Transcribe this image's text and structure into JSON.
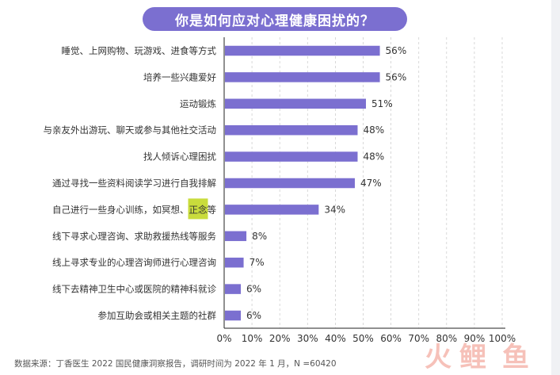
{
  "title": "你是如何应对心理健康困扰的？",
  "source": "数据来源：丁香医生 2022 国民健康洞察报告，调研时间为 2022 年 1 月，N =60420",
  "watermark": {
    "char1": "火",
    "char2": "鲤",
    "char3": "鱼"
  },
  "colors": {
    "bar": "#7b6fd0",
    "title_bg": "#7b6fd0",
    "highlight": "#c9dc3c",
    "watermark": "#e8503a"
  },
  "chart_data": {
    "type": "bar",
    "orientation": "horizontal",
    "title": "你是如何应对心理健康困扰的？",
    "categories": [
      "睡觉、上网购物、玩游戏、进食等方式",
      "培养一些兴趣爱好",
      "运动锻炼",
      "与亲友外出游玩、聊天或参与其他社交活动",
      "找人倾诉心理困扰",
      "通过寻找一些资料阅读学习进行自我排解",
      "自己进行一些身心训练，如冥想、正念等",
      "线下寻求心理咨询、求助救援热线等服务",
      "线上寻求专业的心理咨询师进行心理咨询",
      "线下去精神卫生中心或医院的精神科就诊",
      "参加互助会或相关主题的社群"
    ],
    "values": [
      56,
      56,
      51,
      48,
      48,
      47,
      34,
      8,
      7,
      6,
      6
    ],
    "value_labels": [
      "56%",
      "56%",
      "51%",
      "48%",
      "48%",
      "47%",
      "34%",
      "8%",
      "7%",
      "6%",
      "6%"
    ],
    "highlight": {
      "category_index": 6,
      "text": "正念"
    },
    "xlim": [
      0,
      100
    ],
    "xticks": [
      0,
      10,
      20,
      30,
      40,
      50,
      60,
      70,
      80,
      90,
      100
    ],
    "xtick_labels": [
      "0%",
      "10%",
      "20%",
      "30%",
      "40%",
      "50%",
      "60%",
      "70%",
      "80%",
      "90%",
      "100%"
    ],
    "grid": true,
    "xlabel": "",
    "ylabel": ""
  }
}
